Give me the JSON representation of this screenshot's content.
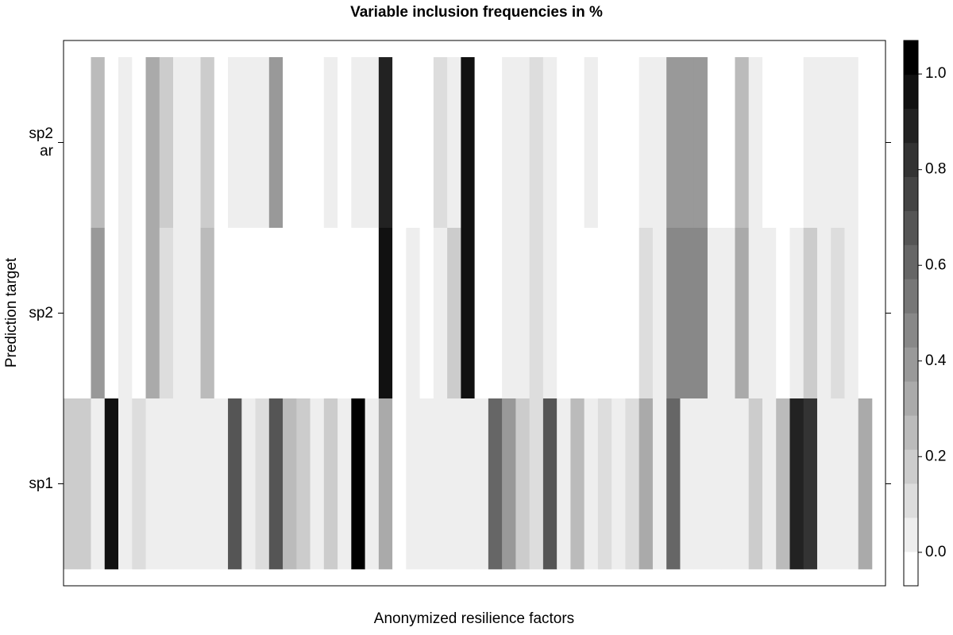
{
  "chart_data": {
    "type": "heatmap",
    "title": "Variable inclusion frequencies in %",
    "x_label": "Anonymized resilience factors",
    "y_label": "Prediction target",
    "series": [
      {
        "name": "sp2\nar",
        "values": [
          0,
          0,
          0.27,
          0,
          0.07,
          0,
          0.33,
          0.2,
          0.07,
          0.07,
          0.2,
          0,
          0.07,
          0.07,
          0.07,
          0.4,
          0,
          0,
          0,
          0.07,
          0,
          0.07,
          0.07,
          0.87,
          0,
          0,
          0,
          0.13,
          0.07,
          0.93,
          0,
          0,
          0.07,
          0.07,
          0.13,
          0.07,
          0,
          0,
          0.07,
          0,
          0,
          0,
          0.07,
          0.07,
          0.4,
          0.4,
          0.4,
          0,
          0,
          0.27,
          0.07,
          0,
          0,
          0,
          0.07,
          0.07,
          0.07,
          0.07,
          0
        ]
      },
      {
        "name": "sp2",
        "values": [
          0,
          0,
          0.4,
          0,
          0.07,
          0,
          0.33,
          0.13,
          0.07,
          0.07,
          0.27,
          0,
          0,
          0,
          0,
          0,
          0,
          0,
          0,
          0,
          0,
          0,
          0,
          0.93,
          0,
          0.07,
          0,
          0.07,
          0.2,
          0.93,
          0,
          0,
          0.07,
          0.07,
          0.13,
          0.07,
          0,
          0,
          0,
          0,
          0,
          0,
          0.13,
          0.07,
          0.45,
          0.45,
          0.45,
          0.07,
          0.07,
          0.33,
          0.07,
          0.07,
          0,
          0.07,
          0.2,
          0.07,
          0.13,
          0.07,
          0
        ]
      },
      {
        "name": "sp1",
        "values": [
          0.2,
          0.2,
          0.07,
          0.93,
          0.07,
          0.13,
          0.07,
          0.07,
          0.07,
          0.07,
          0.07,
          0.07,
          0.65,
          0.07,
          0.13,
          0.7,
          0.27,
          0.2,
          0.07,
          0.2,
          0.07,
          1,
          0.07,
          0.33,
          0,
          0.07,
          0.07,
          0.07,
          0.07,
          0.07,
          0.07,
          0.6,
          0.4,
          0.2,
          0.13,
          0.7,
          0.07,
          0.27,
          0.07,
          0.13,
          0.07,
          0.13,
          0.33,
          0.07,
          0.6,
          0.07,
          0.07,
          0.07,
          0.07,
          0.07,
          0.2,
          0.07,
          0.27,
          0.87,
          0.8,
          0.07,
          0.07,
          0.07,
          0.33
        ]
      }
    ],
    "zlim": [
      -0.07,
      1.07
    ],
    "zticks": [
      {
        "value": 0,
        "label": "0.0"
      },
      0.2,
      0.4,
      0.6,
      0.8,
      {
        "value": 1,
        "label": "1.0"
      }
    ]
  }
}
